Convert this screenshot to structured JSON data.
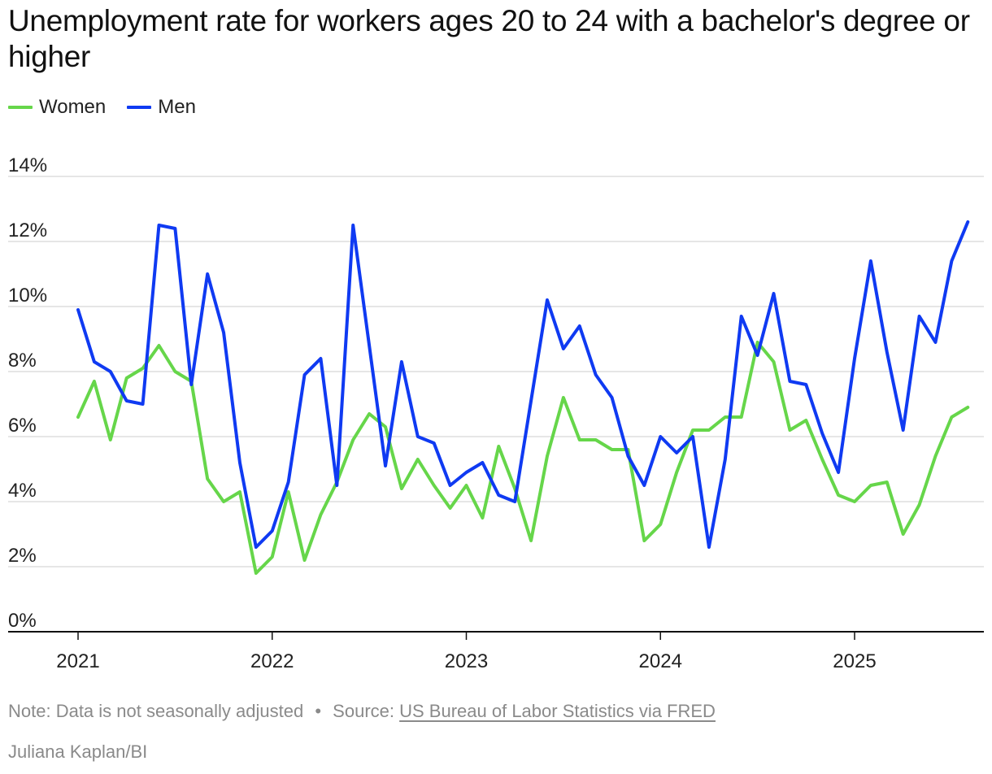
{
  "header": {
    "title": "Unemployment rate for workers ages 20 to 24 with a bachelor's degree or higher"
  },
  "legend": {
    "items": [
      {
        "label": "Women",
        "color": "#66d64a"
      },
      {
        "label": "Men",
        "color": "#0f3af2"
      }
    ]
  },
  "footer": {
    "note": "Note: Data is not seasonally adjusted",
    "separator": "•",
    "source_prefix": "Source:",
    "source_link": "US Bureau of Labor Statistics via FRED",
    "credit": "Juliana Kaplan/BI"
  },
  "colors": {
    "women": "#66d64a",
    "men": "#0f3af2",
    "grid": "#dddddd",
    "axis": "#111111",
    "text": "#111111",
    "muted": "#8a8a8a"
  },
  "chart_data": {
    "type": "line",
    "title": "Unemployment rate for workers ages 20 to 24 with a bachelor's degree or higher",
    "xlabel": "",
    "ylabel": "",
    "x_ticks": [
      "2021",
      "2022",
      "2023",
      "2024",
      "2025"
    ],
    "y_ticks": [
      "0%",
      "2%",
      "4%",
      "6%",
      "8%",
      "10%",
      "12%",
      "14%"
    ],
    "ylim": [
      0,
      14
    ],
    "grid": true,
    "legend_position": "top-left",
    "x": [
      "2021-01",
      "2021-02",
      "2021-03",
      "2021-04",
      "2021-05",
      "2021-06",
      "2021-07",
      "2021-08",
      "2021-09",
      "2021-10",
      "2021-11",
      "2021-12",
      "2022-01",
      "2022-02",
      "2022-03",
      "2022-04",
      "2022-05",
      "2022-06",
      "2022-07",
      "2022-08",
      "2022-09",
      "2022-10",
      "2022-11",
      "2022-12",
      "2023-01",
      "2023-02",
      "2023-03",
      "2023-04",
      "2023-05",
      "2023-06",
      "2023-07",
      "2023-08",
      "2023-09",
      "2023-10",
      "2023-11",
      "2023-12",
      "2024-01",
      "2024-02",
      "2024-03",
      "2024-04",
      "2024-05",
      "2024-06",
      "2024-07",
      "2024-08",
      "2024-09",
      "2024-10",
      "2024-11",
      "2024-12",
      "2025-01",
      "2025-02",
      "2025-03",
      "2025-04",
      "2025-05",
      "2025-06",
      "2025-07",
      "2025-08"
    ],
    "series": [
      {
        "name": "Women",
        "color": "#66d64a",
        "values": [
          6.6,
          7.7,
          5.9,
          7.8,
          8.1,
          8.8,
          8.0,
          7.7,
          4.7,
          4.0,
          4.3,
          1.8,
          2.3,
          4.3,
          2.2,
          3.6,
          4.6,
          5.9,
          6.7,
          6.3,
          4.4,
          5.3,
          4.5,
          3.8,
          4.5,
          3.5,
          5.7,
          4.4,
          2.8,
          5.4,
          7.2,
          5.9,
          5.9,
          5.6,
          5.6,
          2.8,
          3.3,
          4.9,
          6.2,
          6.2,
          6.6,
          6.6,
          8.9,
          8.3,
          6.2,
          6.5,
          5.3,
          4.2,
          4.0,
          4.5,
          4.6,
          3.0,
          3.9,
          5.4,
          6.6,
          6.9
        ]
      },
      {
        "name": "Men",
        "color": "#0f3af2",
        "values": [
          9.9,
          8.3,
          8.0,
          7.1,
          7.0,
          12.5,
          12.4,
          7.6,
          11.0,
          9.2,
          5.2,
          2.6,
          3.1,
          4.6,
          7.9,
          8.4,
          4.5,
          12.5,
          8.8,
          5.1,
          8.3,
          6.0,
          5.8,
          4.5,
          4.9,
          5.2,
          4.2,
          4.0,
          7.1,
          10.2,
          8.7,
          9.4,
          7.9,
          7.2,
          5.4,
          4.5,
          6.0,
          5.5,
          6.0,
          2.6,
          5.3,
          9.7,
          8.5,
          10.4,
          7.7,
          7.6,
          6.1,
          4.9,
          8.4,
          11.4,
          8.6,
          6.2,
          9.7,
          8.9,
          11.4,
          12.6
        ]
      }
    ]
  }
}
